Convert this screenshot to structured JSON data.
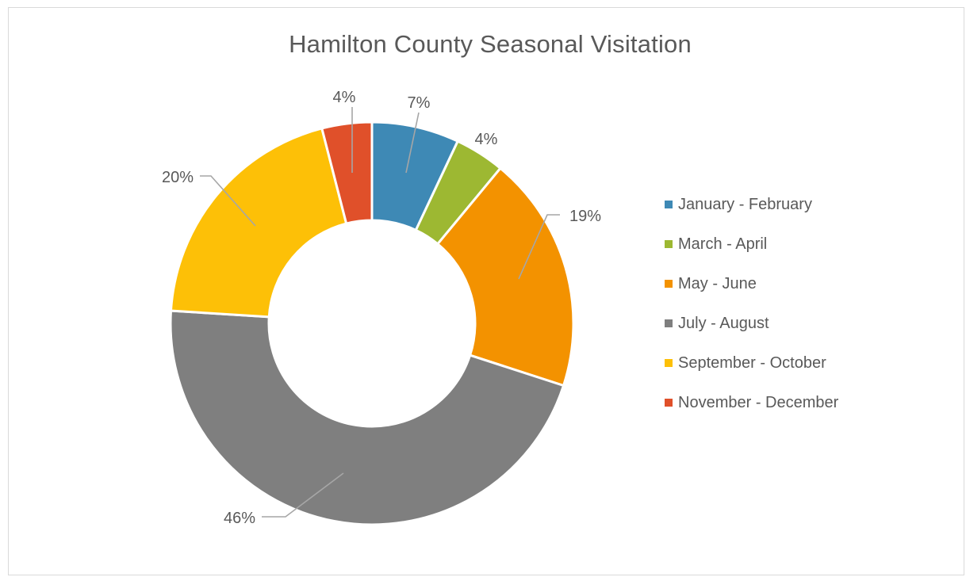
{
  "chart_data": {
    "type": "pie",
    "title": "Hamilton County Seasonal Visitation",
    "donut": true,
    "categories": [
      "January - February",
      "March - April",
      "May - June",
      "July - August",
      "September - October",
      "November - December"
    ],
    "values": [
      7,
      4,
      19,
      46,
      20,
      4
    ],
    "data_labels": [
      "7%",
      "4%",
      "19%",
      "46%",
      "20%",
      "4%"
    ],
    "colors": [
      "#3e89b5",
      "#9db832",
      "#f39200",
      "#7f7f7f",
      "#fdc007",
      "#e0502a"
    ],
    "legend_position": "right",
    "start_angle_degrees_clockwise_from_top": 0
  }
}
